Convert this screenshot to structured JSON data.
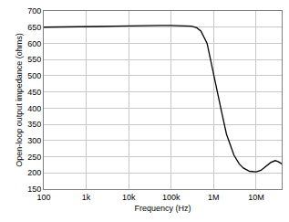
{
  "chart_data": {
    "type": "line",
    "x_label": "Frequency (Hz)",
    "y_label": "Open-loop output impedance (ohms)",
    "log": "x",
    "grid": true,
    "color": "#000000",
    "x": [
      100,
      200,
      500,
      1000,
      2000,
      5000,
      10000,
      20000,
      50000,
      100000,
      200000,
      300000,
      400000,
      500000,
      700000,
      1000000,
      1500000,
      2000000,
      3000000,
      4000000,
      5000000,
      7000000,
      10000000,
      13000000,
      17000000,
      22000000,
      28000000,
      33000000,
      40000000
    ],
    "values": [
      650,
      650,
      650,
      651,
      652,
      653,
      654,
      655,
      655,
      655,
      655,
      653,
      648,
      638,
      600,
      500,
      395,
      320,
      255,
      228,
      215,
      205,
      203,
      208,
      220,
      232,
      238,
      235,
      228
    ],
    "xlim": [
      100,
      40000000
    ],
    "xticks": [
      100,
      {
        "value": 1000,
        "label": "1k"
      },
      {
        "value": 10000,
        "label": "10k"
      },
      {
        "value": 100000,
        "label": "100k"
      },
      {
        "value": 1000000,
        "label": "1M"
      },
      {
        "value": 10000000,
        "label": "10M"
      }
    ],
    "ylim": [
      150,
      700
    ],
    "yticks": [
      150,
      200,
      250,
      300,
      350,
      400,
      450,
      500,
      550,
      600,
      650,
      700
    ]
  }
}
